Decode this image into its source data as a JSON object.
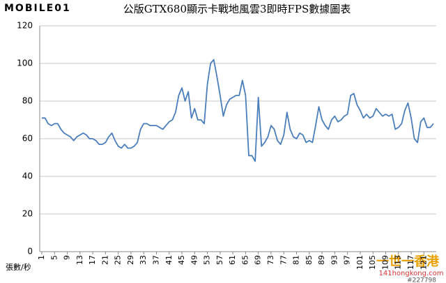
{
  "brand": "MOBILE01",
  "watermark": {
    "site": "一世一香港",
    "url": "141hongkong.com",
    "id": "#227798"
  },
  "chart_data": {
    "type": "line",
    "title": "公版GTX680顯示卡戰地風雲3即時FPS數據圖表",
    "y_label": "張數/秒",
    "x": [
      1,
      2,
      3,
      4,
      5,
      6,
      7,
      8,
      9,
      10,
      11,
      12,
      13,
      14,
      15,
      16,
      17,
      18,
      19,
      20,
      21,
      22,
      23,
      24,
      25,
      26,
      27,
      28,
      29,
      30,
      31,
      32,
      33,
      34,
      35,
      36,
      37,
      38,
      39,
      40,
      41,
      42,
      43,
      44,
      45,
      46,
      47,
      48,
      49,
      50,
      51,
      52,
      53,
      54,
      55,
      56,
      57,
      58,
      59,
      60,
      61,
      62,
      63,
      64,
      65,
      66,
      67,
      68,
      69,
      70,
      71,
      72,
      73,
      74,
      75,
      76,
      77,
      78,
      79,
      80,
      81,
      82,
      83,
      84,
      85,
      86,
      87,
      88,
      89,
      90,
      91,
      92,
      93,
      94,
      95,
      96,
      97,
      98,
      99,
      100,
      101,
      102,
      103,
      104,
      105,
      106,
      107,
      108,
      109,
      110,
      111,
      112,
      113,
      114,
      115,
      116,
      117,
      118,
      119,
      120,
      121,
      122,
      123,
      124
    ],
    "series": [
      {
        "name": "FPS",
        "color": "#4a7ebb",
        "values": [
          71,
          71,
          68,
          67,
          68,
          68,
          65,
          63,
          62,
          61,
          59,
          61,
          62,
          63,
          62,
          60,
          60,
          59,
          57,
          57,
          58,
          61,
          63,
          59,
          56,
          55,
          57,
          55,
          55,
          56,
          58,
          65,
          68,
          68,
          67,
          67,
          67,
          66,
          65,
          67,
          69,
          70,
          74,
          83,
          87,
          80,
          85,
          71,
          76,
          70,
          70,
          68,
          89,
          100,
          102,
          93,
          83,
          72,
          78,
          81,
          82,
          83,
          83,
          91,
          83,
          51,
          51,
          48,
          82,
          56,
          58,
          61,
          67,
          65,
          59,
          57,
          62,
          74,
          65,
          61,
          60,
          63,
          62,
          58,
          59,
          58,
          67,
          77,
          70,
          67,
          65,
          70,
          72,
          69,
          70,
          72,
          73,
          83,
          84,
          78,
          75,
          71,
          73,
          71,
          72,
          76,
          74,
          72,
          73,
          72,
          73,
          65,
          66,
          68,
          75,
          79,
          71,
          60,
          58,
          69,
          71,
          66,
          66,
          68
        ]
      }
    ],
    "xlim": [
      1,
      124
    ],
    "xticks": [
      1,
      5,
      9,
      13,
      17,
      21,
      25,
      29,
      33,
      37,
      41,
      45,
      49,
      53,
      57,
      61,
      65,
      69,
      73,
      77,
      81,
      85,
      89,
      93,
      97,
      101,
      105,
      109,
      113,
      117,
      121
    ],
    "ylim": [
      0,
      120
    ],
    "yticks": [
      0,
      20,
      40,
      60,
      80,
      100,
      120
    ],
    "grid": true
  }
}
